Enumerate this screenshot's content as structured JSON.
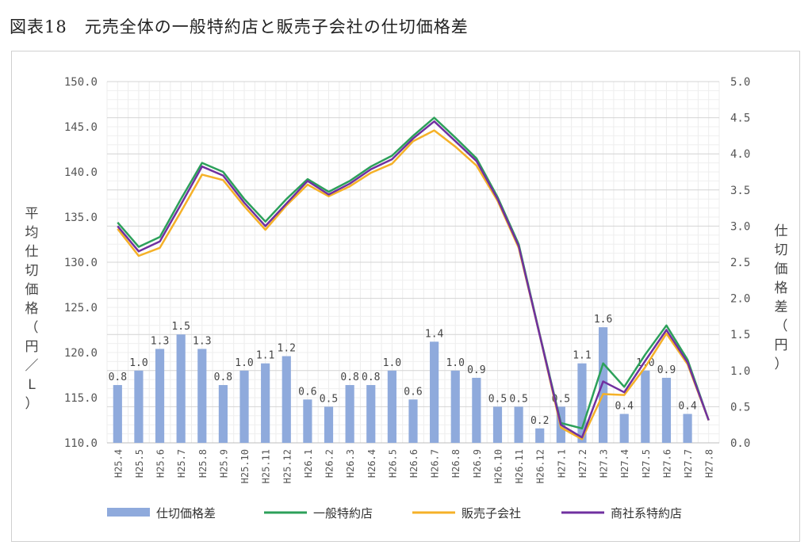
{
  "figure_title": "図表18　元売全体の一般特約店と販売子会社の仕切価格差",
  "chart_data": {
    "type": "bar+line",
    "categories": [
      "H25.4",
      "H25.5",
      "H25.6",
      "H25.7",
      "H25.8",
      "H25.9",
      "H25.10",
      "H25.11",
      "H25.12",
      "H26.1",
      "H26.2",
      "H26.3",
      "H26.4",
      "H26.5",
      "H26.6",
      "H26.7",
      "H26.8",
      "H26.9",
      "H26.10",
      "H26.11",
      "H26.12",
      "H27.1",
      "H27.2",
      "H27.3",
      "H27.4",
      "H27.5",
      "H27.6",
      "H27.7",
      "H27.8"
    ],
    "left_axis": {
      "label": "平均仕切価格（円／L）",
      "min": 110.0,
      "max": 150.0,
      "step": 5.0,
      "ticks": [
        "110.0",
        "115.0",
        "120.0",
        "125.0",
        "130.0",
        "135.0",
        "140.0",
        "145.0",
        "150.0"
      ]
    },
    "right_axis": {
      "label": "仕切価格差（円）",
      "min": 0.0,
      "max": 5.0,
      "step": 0.5,
      "ticks": [
        "0.0",
        "0.5",
        "1.0",
        "1.5",
        "2.0",
        "2.5",
        "3.0",
        "3.5",
        "4.0",
        "4.5",
        "5.0"
      ]
    },
    "bar_series": {
      "name": "仕切価格差",
      "axis": "right",
      "color": "#8faadc",
      "values": [
        0.8,
        1.0,
        1.3,
        1.5,
        1.3,
        0.8,
        1.0,
        1.1,
        1.2,
        0.6,
        0.5,
        0.8,
        0.8,
        1.0,
        0.6,
        1.4,
        1.0,
        0.9,
        0.5,
        0.5,
        0.2,
        0.5,
        1.1,
        1.6,
        0.4,
        1.0,
        0.9,
        0.4,
        0.0
      ],
      "labels": [
        "0.8",
        "1.0",
        "1.3",
        "1.5",
        "1.3",
        "0.8",
        "1.0",
        "1.1",
        "1.2",
        "0.6",
        "0.5",
        "0.8",
        "0.8",
        "1.0",
        "0.6",
        "1.4",
        "1.0",
        "0.9",
        "0.5",
        "0.5",
        "0.2",
        "0.5",
        "1.1",
        "1.6",
        "0.4",
        "1.0",
        "0.9",
        "0.4",
        ""
      ]
    },
    "line_series": [
      {
        "name": "一般特約店",
        "axis": "left",
        "color": "#2ca05a",
        "values": [
          134.4,
          131.7,
          132.8,
          137.0,
          141.0,
          140.0,
          137.0,
          134.5,
          137.0,
          139.2,
          137.8,
          139.0,
          140.6,
          141.8,
          144.0,
          146.0,
          143.8,
          141.5,
          137.2,
          132.0,
          122.0,
          112.2,
          111.6,
          118.8,
          116.2,
          119.8,
          123.0,
          119.2,
          112.5
        ]
      },
      {
        "name": "販売子会社",
        "axis": "left",
        "color": "#f5b128",
        "values": [
          133.7,
          130.7,
          131.6,
          135.6,
          139.7,
          139.1,
          136.2,
          133.6,
          136.3,
          138.6,
          137.3,
          138.4,
          139.9,
          140.9,
          143.4,
          144.6,
          142.8,
          140.7,
          136.8,
          131.6,
          121.9,
          111.7,
          110.4,
          115.4,
          115.3,
          118.4,
          122.1,
          118.7,
          112.5
        ]
      },
      {
        "name": "商社系特約店",
        "axis": "left",
        "color": "#7030a0",
        "values": [
          134.0,
          131.2,
          132.3,
          136.4,
          140.6,
          139.6,
          136.6,
          134.0,
          136.5,
          139.0,
          137.5,
          138.7,
          140.3,
          141.4,
          143.7,
          145.6,
          143.4,
          141.2,
          137.0,
          131.8,
          121.9,
          112.0,
          110.6,
          116.8,
          115.6,
          119.1,
          122.5,
          118.9,
          112.5
        ]
      }
    ],
    "grid": true,
    "legend_position": "bottom"
  }
}
